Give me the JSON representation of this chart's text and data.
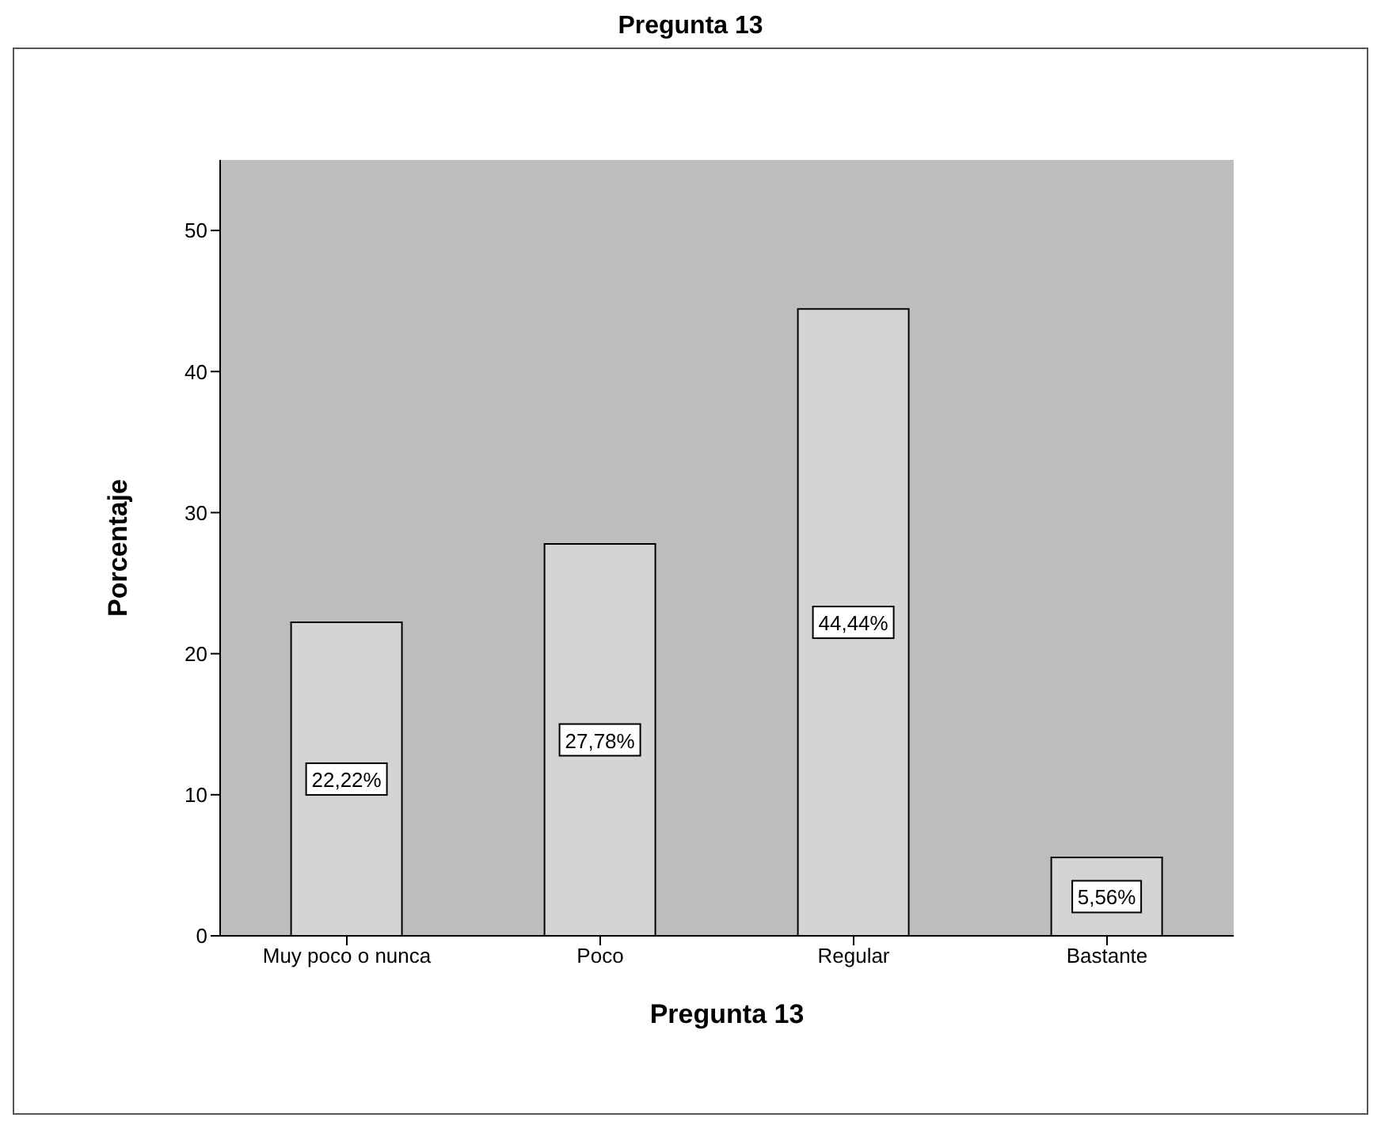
{
  "chart_data": {
    "type": "bar",
    "title": "Pregunta 13",
    "xlabel": "Pregunta 13",
    "ylabel": "Porcentaje",
    "categories": [
      "Muy poco o nunca",
      "Poco",
      "Regular",
      "Bastante"
    ],
    "values": [
      22.22,
      27.78,
      44.44,
      5.56
    ],
    "color": "#d4d4d4",
    "value_labels": [
      "22,22%",
      "27,78%",
      "44,44%",
      "5,56%"
    ],
    "ylim": [
      0,
      55
    ],
    "yticks": [
      0,
      10,
      20,
      30,
      40,
      50
    ],
    "grid": false
  }
}
